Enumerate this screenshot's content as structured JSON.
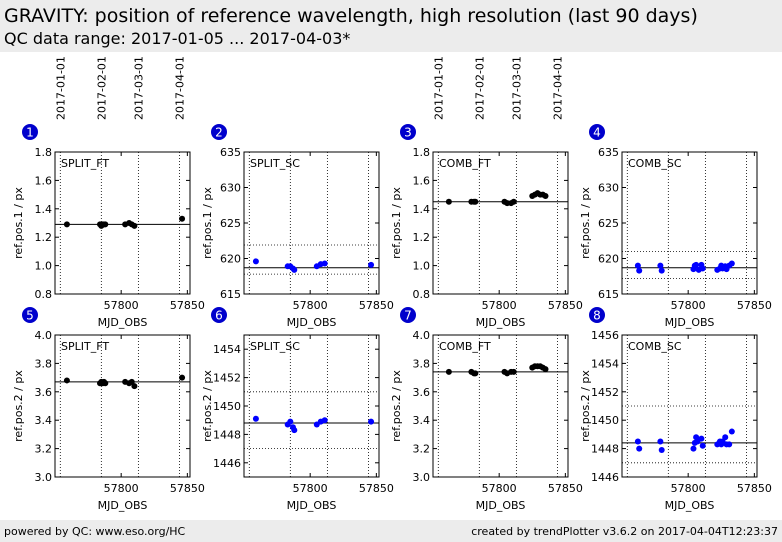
{
  "header": {
    "title": "GRAVITY: position of reference wavelength, high resolution (last 90 days)",
    "subtitle": "QC data range: 2017-01-05 ... 2017-04-03*"
  },
  "footer": {
    "left": "powered by QC: www.eso.org/HC",
    "right": "created by trendPlotter v3.6.2 on 2017-04-04T12:23:37"
  },
  "colors": {
    "ft": "#000000",
    "sc": "#0000ff",
    "badge": "#0000cc"
  },
  "top_axis": {
    "labels": [
      "2017-01-01",
      "2017-02-01",
      "2017-03-01",
      "2017-04-01"
    ],
    "mjd": [
      57754,
      57785,
      57813,
      57844
    ]
  },
  "chart_data": [
    {
      "id": "1",
      "type": "scatter",
      "label": "SPLIT_FT",
      "ylabel": "ref.pos.1 / px",
      "xlabel": "MJD_OBS",
      "xlim": [
        57750,
        57852
      ],
      "ylim": [
        0.8,
        1.8
      ],
      "yticks": [
        "0.8",
        "1.0",
        "1.2",
        "1.4",
        "1.6",
        "1.8"
      ],
      "xticks": [
        "57800",
        "57850"
      ],
      "ref": 1.29,
      "band": null,
      "color": "ft",
      "x": [
        57759,
        57784,
        57785,
        57786,
        57787,
        57788,
        57803,
        57806,
        57808,
        57810,
        57846
      ],
      "y": [
        1.29,
        1.29,
        1.28,
        1.29,
        1.29,
        1.29,
        1.29,
        1.3,
        1.29,
        1.28,
        1.33
      ]
    },
    {
      "id": "2",
      "type": "scatter",
      "label": "SPLIT_SC",
      "ylabel": "ref.pos.1 / px",
      "xlabel": "MJD_OBS",
      "xlim": [
        57750,
        57852
      ],
      "ylim": [
        615,
        635
      ],
      "yticks": [
        "615",
        "620",
        "625",
        "630",
        "635"
      ],
      "xticks": [
        "57800",
        "57850"
      ],
      "ref": 618.7,
      "band": [
        617.8,
        621.9
      ],
      "color": "sc",
      "x": [
        57759,
        57783,
        57785,
        57787,
        57788,
        57805,
        57808,
        57811,
        57846
      ],
      "y": [
        619.6,
        618.9,
        618.9,
        618.6,
        618.4,
        618.9,
        619.2,
        619.3,
        619.1
      ]
    },
    {
      "id": "3",
      "type": "scatter",
      "label": "COMB_FT",
      "ylabel": "ref.pos.1 / px",
      "xlabel": "MJD_OBS",
      "xlim": [
        57750,
        57852
      ],
      "ylim": [
        0.8,
        1.8
      ],
      "yticks": [
        "0.8",
        "1.0",
        "1.2",
        "1.4",
        "1.6",
        "1.8"
      ],
      "xticks": [
        "57800",
        "57850"
      ],
      "ref": 1.45,
      "band": null,
      "color": "ft",
      "x": [
        57762,
        57779,
        57781,
        57782,
        57804,
        57806,
        57809,
        57811,
        57825,
        57827,
        57829,
        57831,
        57833,
        57835
      ],
      "y": [
        1.45,
        1.45,
        1.45,
        1.45,
        1.45,
        1.44,
        1.44,
        1.45,
        1.49,
        1.5,
        1.51,
        1.5,
        1.5,
        1.49
      ]
    },
    {
      "id": "4",
      "type": "scatter",
      "label": "COMB_SC",
      "ylabel": "ref.pos.1 / px",
      "xlabel": "MJD_OBS",
      "xlim": [
        57750,
        57852
      ],
      "ylim": [
        615,
        635
      ],
      "yticks": [
        "615",
        "620",
        "625",
        "630",
        "635"
      ],
      "xticks": [
        "57800",
        "57850"
      ],
      "ref": 618.7,
      "band": [
        617.2,
        621.0
      ],
      "color": "sc",
      "x": [
        57762,
        57763,
        57779,
        57780,
        57804,
        57805,
        57806,
        57808,
        57810,
        57811,
        57822,
        57824,
        57825,
        57826,
        57828,
        57829,
        57831,
        57833
      ],
      "y": [
        619.0,
        618.3,
        619.0,
        618.3,
        618.5,
        619.0,
        619.1,
        618.4,
        619.1,
        618.6,
        618.4,
        618.6,
        619.0,
        618.6,
        618.9,
        618.5,
        619.0,
        619.3
      ]
    },
    {
      "id": "5",
      "type": "scatter",
      "label": "SPLIT_FT",
      "ylabel": "ref.pos.2 / px",
      "xlabel": "MJD_OBS",
      "xlim": [
        57750,
        57852
      ],
      "ylim": [
        3.0,
        4.0
      ],
      "yticks": [
        "3.0",
        "3.2",
        "3.4",
        "3.6",
        "3.8",
        "4.0"
      ],
      "xticks": [
        "57800",
        "57850"
      ],
      "ref": 3.67,
      "band": null,
      "color": "ft",
      "x": [
        57759,
        57784,
        57785,
        57786,
        57787,
        57788,
        57803,
        57806,
        57808,
        57810,
        57846
      ],
      "y": [
        3.68,
        3.66,
        3.67,
        3.66,
        3.67,
        3.66,
        3.67,
        3.66,
        3.67,
        3.64,
        3.7
      ]
    },
    {
      "id": "6",
      "type": "scatter",
      "label": "SPLIT_SC",
      "ylabel": "ref.pos.2 / px",
      "xlabel": "MJD_OBS",
      "xlim": [
        57750,
        57852
      ],
      "ylim": [
        1445,
        1455
      ],
      "yticks": [
        "1446",
        "1448",
        "1450",
        "1452",
        "1454"
      ],
      "xticks": [
        "57800",
        "57850"
      ],
      "ref": 1448.8,
      "band": [
        1447.0,
        1451.0
      ],
      "color": "sc",
      "x": [
        57759,
        57783,
        57785,
        57787,
        57788,
        57805,
        57808,
        57811,
        57846
      ],
      "y": [
        1449.1,
        1448.7,
        1448.9,
        1448.5,
        1448.3,
        1448.7,
        1448.9,
        1449.0,
        1448.9
      ]
    },
    {
      "id": "7",
      "type": "scatter",
      "label": "COMB_FT",
      "ylabel": "ref.pos.2 / px",
      "xlabel": "MJD_OBS",
      "xlim": [
        57750,
        57852
      ],
      "ylim": [
        3.0,
        4.0
      ],
      "yticks": [
        "3.0",
        "3.2",
        "3.4",
        "3.6",
        "3.8",
        "4.0"
      ],
      "xticks": [
        "57800",
        "57850"
      ],
      "ref": 3.74,
      "band": null,
      "color": "ft",
      "x": [
        57762,
        57779,
        57781,
        57782,
        57804,
        57806,
        57809,
        57811,
        57825,
        57827,
        57829,
        57831,
        57833,
        57835
      ],
      "y": [
        3.74,
        3.74,
        3.73,
        3.73,
        3.74,
        3.73,
        3.74,
        3.74,
        3.77,
        3.78,
        3.78,
        3.78,
        3.77,
        3.76
      ]
    },
    {
      "id": "8",
      "type": "scatter",
      "label": "COMB_SC",
      "ylabel": "ref.pos.2 / px",
      "xlabel": "MJD_OBS",
      "xlim": [
        57750,
        57852
      ],
      "ylim": [
        1446,
        1456
      ],
      "yticks": [
        "1446",
        "1448",
        "1450",
        "1452",
        "1454",
        "1456"
      ],
      "xticks": [
        "57800",
        "57850"
      ],
      "ref": 1448.4,
      "band": [
        1447.0,
        1451.0
      ],
      "color": "sc",
      "x": [
        57762,
        57763,
        57779,
        57780,
        57804,
        57805,
        57806,
        57807,
        57810,
        57811,
        57822,
        57824,
        57825,
        57826,
        57828,
        57829,
        57831,
        57833
      ],
      "y": [
        1448.5,
        1448.0,
        1448.5,
        1447.9,
        1448.0,
        1448.4,
        1448.8,
        1448.5,
        1448.7,
        1448.2,
        1448.3,
        1448.5,
        1448.3,
        1448.5,
        1448.8,
        1448.3,
        1448.3,
        1449.2
      ]
    }
  ]
}
